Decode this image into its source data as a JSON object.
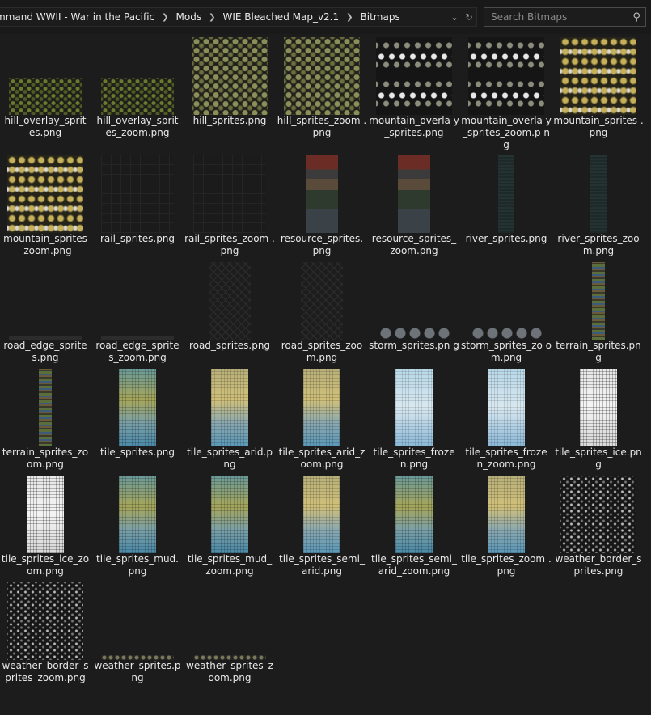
{
  "breadcrumb": [
    "mmand WWII - War in the Pacific",
    "Mods",
    "WIE Bleached Map_v2.1",
    "Bitmaps"
  ],
  "search": {
    "placeholder": "Search Bitmaps",
    "value": ""
  },
  "icons": {
    "separator": "chevron-right-icon",
    "dropdown": "chevron-down-icon",
    "refresh": "refresh-icon",
    "search": "search-icon"
  },
  "files": [
    {
      "name": "hill_overlay_sprites.png",
      "label": "hill_overlay_sprit es.png",
      "thumb": "t-hill"
    },
    {
      "name": "hill_overlay_sprites_zoom.png",
      "label": "hill_overlay_sprit es_zoom.png",
      "thumb": "t-hill"
    },
    {
      "name": "hill_sprites.png",
      "label": "hill_sprites.png",
      "thumb": "t-hillbig"
    },
    {
      "name": "hill_sprites_zoom.png",
      "label": "hill_sprites_zoom .png",
      "thumb": "t-hillbig"
    },
    {
      "name": "mountain_overlay_sprites.png",
      "label": "mountain_overla y_sprites.png",
      "thumb": "t-mtnov"
    },
    {
      "name": "mountain_overlay_sprites_zoom.png",
      "label": "mountain_overla y_sprites_zoom.p ng",
      "thumb": "t-mtnov"
    },
    {
      "name": "mountain_sprites.png",
      "label": "mountain_sprites .png",
      "thumb": "t-mtn"
    },
    {
      "name": "mountain_sprites_zoom.png",
      "label": "mountain_sprites _zoom.png",
      "thumb": "t-mtn"
    },
    {
      "name": "rail_sprites.png",
      "label": "rail_sprites.png",
      "thumb": "t-rail"
    },
    {
      "name": "rail_sprites_zoom.png",
      "label": "rail_sprites_zoom .png",
      "thumb": "t-rail"
    },
    {
      "name": "resource_sprites.png",
      "label": "resource_sprites. png",
      "thumb": "t-resource"
    },
    {
      "name": "resource_sprites_zoom.png",
      "label": "resource_sprites_ zoom.png",
      "thumb": "t-resource"
    },
    {
      "name": "river_sprites.png",
      "label": "river_sprites.png",
      "thumb": "t-river"
    },
    {
      "name": "river_sprites_zoom.png",
      "label": "river_sprites_zoo m.png",
      "thumb": "t-river"
    },
    {
      "name": "road_edge_sprites.png",
      "label": "road_edge_sprite s.png",
      "thumb": "t-roadedge"
    },
    {
      "name": "road_edge_sprites_zoom.png",
      "label": "road_edge_sprite s_zoom.png",
      "thumb": "t-roadedge"
    },
    {
      "name": "road_sprites.png",
      "label": "road_sprites.png",
      "thumb": "t-road"
    },
    {
      "name": "road_sprites_zoom.png",
      "label": "road_sprites_zoo m.png",
      "thumb": "t-road"
    },
    {
      "name": "storm_sprites.png",
      "label": "storm_sprites.pn g",
      "thumb": "t-storm"
    },
    {
      "name": "storm_sprites_zoom.png",
      "label": "storm_sprites_zo om.png",
      "thumb": "t-storm"
    },
    {
      "name": "terrain_sprites.png",
      "label": "terrain_sprites.pn g",
      "thumb": "t-terrain"
    },
    {
      "name": "terrain_sprites_zoom.png",
      "label": "terrain_sprites_zo om.png",
      "thumb": "t-terrain"
    },
    {
      "name": "tile_sprites.png",
      "label": "tile_sprites.png",
      "thumb": "t-tile"
    },
    {
      "name": "tile_sprites_arid.png",
      "label": "tile_sprites_arid.p ng",
      "thumb": "t-tile-arid"
    },
    {
      "name": "tile_sprites_arid_zoom.png",
      "label": "tile_sprites_arid_z oom.png",
      "thumb": "t-tile-arid"
    },
    {
      "name": "tile_sprites_frozen.png",
      "label": "tile_sprites_froze n.png",
      "thumb": "t-tile-frozen"
    },
    {
      "name": "tile_sprites_frozen_zoom.png",
      "label": "tile_sprites_froze n_zoom.png",
      "thumb": "t-tile-frozen"
    },
    {
      "name": "tile_sprites_ice.png",
      "label": "tile_sprites_ice.pn g",
      "thumb": "t-tile-ice"
    },
    {
      "name": "tile_sprites_ice_zoom.png",
      "label": "tile_sprites_ice_zo om.png",
      "thumb": "t-tile-ice"
    },
    {
      "name": "tile_sprites_mud.png",
      "label": "tile_sprites_mud. png",
      "thumb": "t-tile"
    },
    {
      "name": "tile_sprites_mud_zoom.png",
      "label": "tile_sprites_mud_ zoom.png",
      "thumb": "t-tile"
    },
    {
      "name": "tile_sprites_semi_arid.png",
      "label": "tile_sprites_semi_ arid.png",
      "thumb": "t-tile-arid"
    },
    {
      "name": "tile_sprites_semi_arid_zoom.png",
      "label": "tile_sprites_semi_ arid_zoom.png",
      "thumb": "t-tile"
    },
    {
      "name": "tile_sprites_zoom.png",
      "label": "tile_sprites_zoom .png",
      "thumb": "t-tile-arid"
    },
    {
      "name": "weather_border_sprites.png",
      "label": "weather_border_s prites.png",
      "thumb": "t-weather"
    },
    {
      "name": "weather_border_sprites_zoom.png",
      "label": "weather_border_s prites_zoom.png",
      "thumb": "t-weather"
    },
    {
      "name": "weather_sprites.png",
      "label": "weather_sprites.p ng",
      "thumb": "t-weatherspr"
    },
    {
      "name": "weather_sprites_zoom.png",
      "label": "weather_sprites_z oom.png",
      "thumb": "t-weatherspr"
    }
  ]
}
